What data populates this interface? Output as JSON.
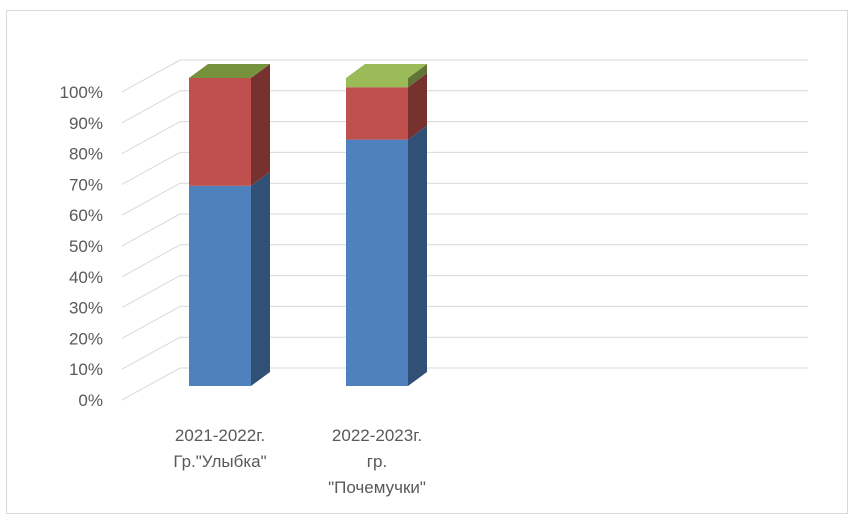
{
  "chart_data": {
    "type": "bar",
    "stacked": "percent",
    "three_d": true,
    "categories": [
      [
        "2021-2022г.",
        "Гр.\"Улыбка\""
      ],
      [
        "2022-2023г.",
        "гр.",
        "\"Почемучки\""
      ]
    ],
    "series": [
      {
        "values": [
          65,
          80
        ],
        "color": "#4f81bd"
      },
      {
        "values": [
          35,
          17
        ],
        "color": "#c0504d"
      },
      {
        "values": [
          0,
          3
        ],
        "color": "#9bbb59"
      }
    ],
    "yticks": [
      "0%",
      "10%",
      "20%",
      "30%",
      "40%",
      "50%",
      "60%",
      "70%",
      "80%",
      "90%",
      "100%"
    ],
    "ylim": [
      0,
      100
    ],
    "grid": true,
    "legend": "none",
    "top_cap_color": "#76923c"
  }
}
